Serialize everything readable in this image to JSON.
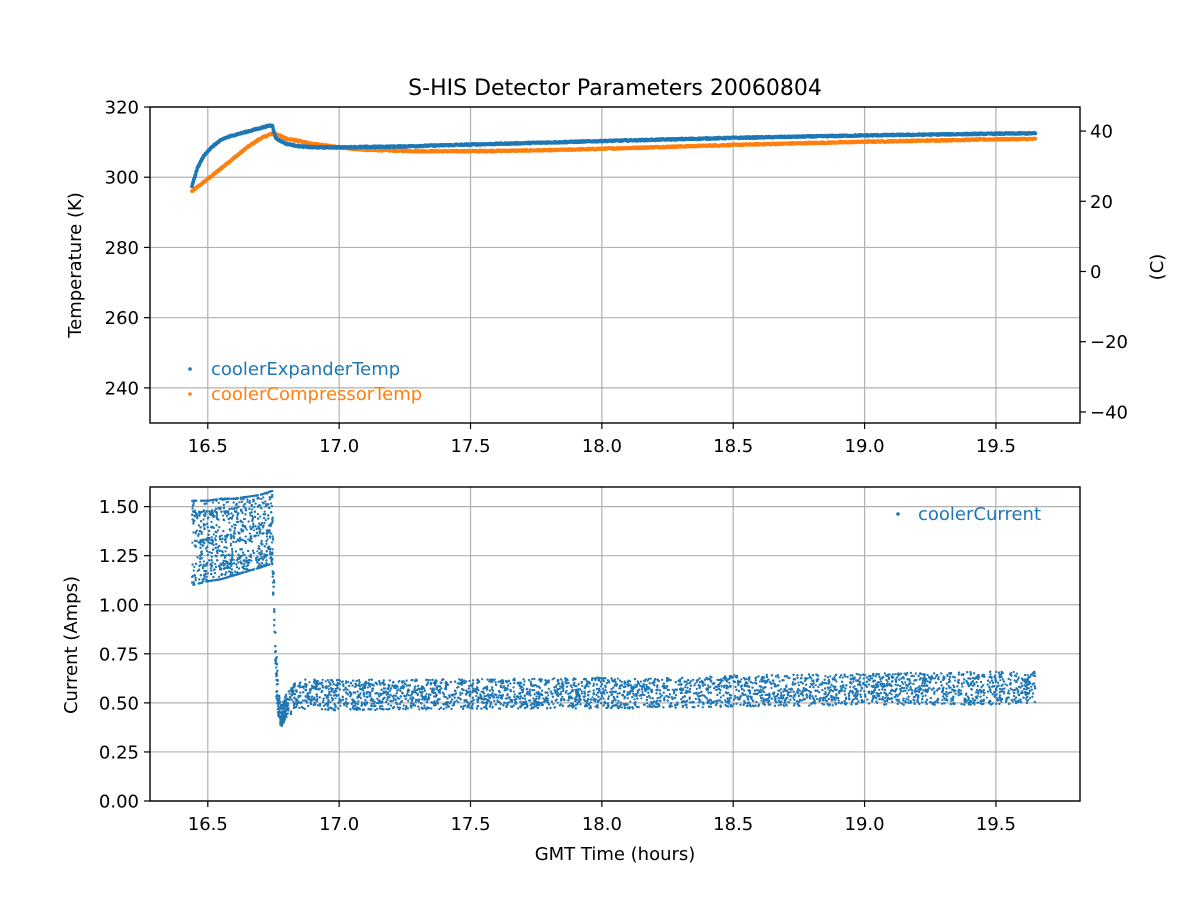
{
  "colors": {
    "expander": "#1f77b4",
    "compressor": "#ff7f0e",
    "current": "#1f77b4",
    "grid": "#b0b0b0"
  },
  "chart_data": [
    {
      "type": "scatter",
      "title": "S-HIS Detector Parameters 20060804",
      "xlabel": "",
      "ylabel": "Temperature (K)",
      "y2label": "(C)",
      "xlim": [
        16.28,
        19.82
      ],
      "ylim": [
        230,
        320
      ],
      "y2lim": [
        -43.15,
        46.85
      ],
      "xticks": [
        "16.5",
        "17.0",
        "17.5",
        "18.0",
        "18.5",
        "19.0",
        "19.5"
      ],
      "yticks": [
        "240",
        "260",
        "280",
        "300",
        "320"
      ],
      "y2ticks": [
        "−40",
        "−20",
        "0",
        "20",
        "40"
      ],
      "grid": true,
      "legend": "lower-left",
      "series": [
        {
          "name": "coolerExpanderTemp",
          "x": [
            16.44,
            16.46,
            16.48,
            16.5,
            16.53,
            16.56,
            16.6,
            16.65,
            16.7,
            16.73,
            16.745,
            16.76,
            16.8,
            16.85,
            16.9,
            17.0,
            17.2,
            17.5,
            18.0,
            18.5,
            19.0,
            19.5,
            19.65
          ],
          "y": [
            297.5,
            302.5,
            305.5,
            307.5,
            309.5,
            311.0,
            312.0,
            313.0,
            314.0,
            314.6,
            314.8,
            311.0,
            309.5,
            308.8,
            308.5,
            308.5,
            308.7,
            309.3,
            310.3,
            311.2,
            311.9,
            312.4,
            312.5
          ]
        },
        {
          "name": "coolerCompressorTemp",
          "x": [
            16.44,
            16.5,
            16.55,
            16.6,
            16.65,
            16.7,
            16.74,
            16.76,
            16.8,
            16.9,
            17.0,
            17.1,
            17.3,
            17.5,
            17.8,
            18.0,
            18.5,
            19.0,
            19.5,
            19.65
          ],
          "y": [
            296.0,
            299.5,
            302.5,
            305.5,
            308.5,
            311.0,
            312.3,
            312.3,
            311.0,
            309.5,
            308.5,
            307.8,
            307.4,
            307.4,
            307.7,
            308.1,
            309.2,
            310.1,
            310.8,
            310.9
          ]
        }
      ]
    },
    {
      "type": "scatter",
      "title": "",
      "xlabel": "GMT Time (hours)",
      "ylabel": "Current (Amps)",
      "xlim": [
        16.28,
        19.82
      ],
      "ylim": [
        0.0,
        1.6
      ],
      "xticks": [
        "16.5",
        "17.0",
        "17.5",
        "18.0",
        "18.5",
        "19.0",
        "19.5"
      ],
      "yticks": [
        "0.00",
        "0.25",
        "0.50",
        "0.75",
        "1.00",
        "1.25",
        "1.50"
      ],
      "grid": true,
      "legend": "top-right",
      "series": [
        {
          "name": "coolerCurrent",
          "x": [
            16.44,
            16.5,
            16.55,
            16.6,
            16.65,
            16.7,
            16.745,
            16.75,
            16.76,
            16.77,
            16.78,
            16.8,
            16.83,
            16.87,
            16.9,
            17.0,
            17.5,
            18.0,
            18.1,
            18.5,
            19.0,
            19.5,
            19.65
          ],
          "y_min": [
            1.1,
            1.12,
            1.13,
            1.15,
            1.17,
            1.19,
            1.21,
            0.95,
            0.55,
            0.4,
            0.38,
            0.42,
            0.46,
            0.47,
            0.47,
            0.46,
            0.47,
            0.47,
            0.47,
            0.48,
            0.49,
            0.49,
            0.5
          ],
          "y_max": [
            1.53,
            1.53,
            1.54,
            1.54,
            1.55,
            1.56,
            1.58,
            1.25,
            0.8,
            0.55,
            0.48,
            0.55,
            0.6,
            0.62,
            0.62,
            0.62,
            0.62,
            0.63,
            0.62,
            0.64,
            0.65,
            0.66,
            0.66
          ]
        }
      ]
    }
  ]
}
